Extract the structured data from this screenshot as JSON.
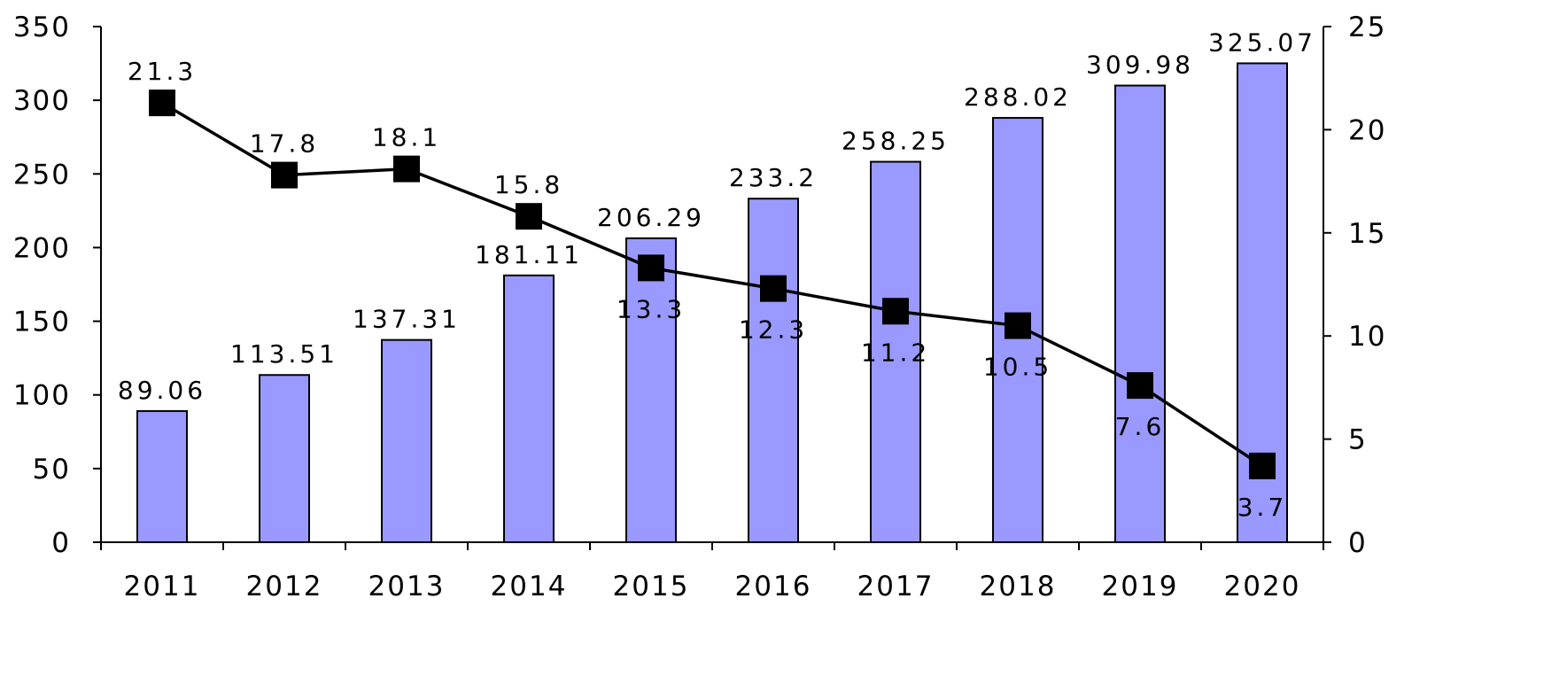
{
  "chart_data": {
    "type": "bar",
    "categories": [
      "2011",
      "2012",
      "2013",
      "2014",
      "2015",
      "2016",
      "2017",
      "2018",
      "2019",
      "2020"
    ],
    "series": [
      {
        "type": "bar",
        "axis": "left",
        "color": "#9999ff",
        "values": [
          89.06,
          113.51,
          137.31,
          181.11,
          206.29,
          233.2,
          258.25,
          288.02,
          309.98,
          325.07
        ],
        "labels": [
          "89.06",
          "113.51",
          "137.31",
          "181.11",
          "206.29",
          "233.2",
          "258.25",
          "288.02",
          "309.98",
          "325.07"
        ]
      },
      {
        "type": "line",
        "axis": "right",
        "color": "#000000",
        "marker": "square",
        "values": [
          21.3,
          17.8,
          18.1,
          15.8,
          13.3,
          12.3,
          11.2,
          10.5,
          7.6,
          3.7
        ],
        "labels": [
          "21.3",
          "17.8",
          "18.1",
          "15.8",
          "13.3",
          "12.3",
          "11.2",
          "10.5",
          "7.6",
          "3.7"
        ]
      }
    ],
    "y_left": {
      "min": 0,
      "max": 350,
      "ticks": [
        "0",
        "50",
        "100",
        "150",
        "200",
        "250",
        "300",
        "350"
      ]
    },
    "y_right": {
      "min": 0,
      "max": 25,
      "ticks": [
        "0",
        "5",
        "10",
        "15",
        "20",
        "25"
      ]
    },
    "grid": false,
    "legend": "none"
  }
}
